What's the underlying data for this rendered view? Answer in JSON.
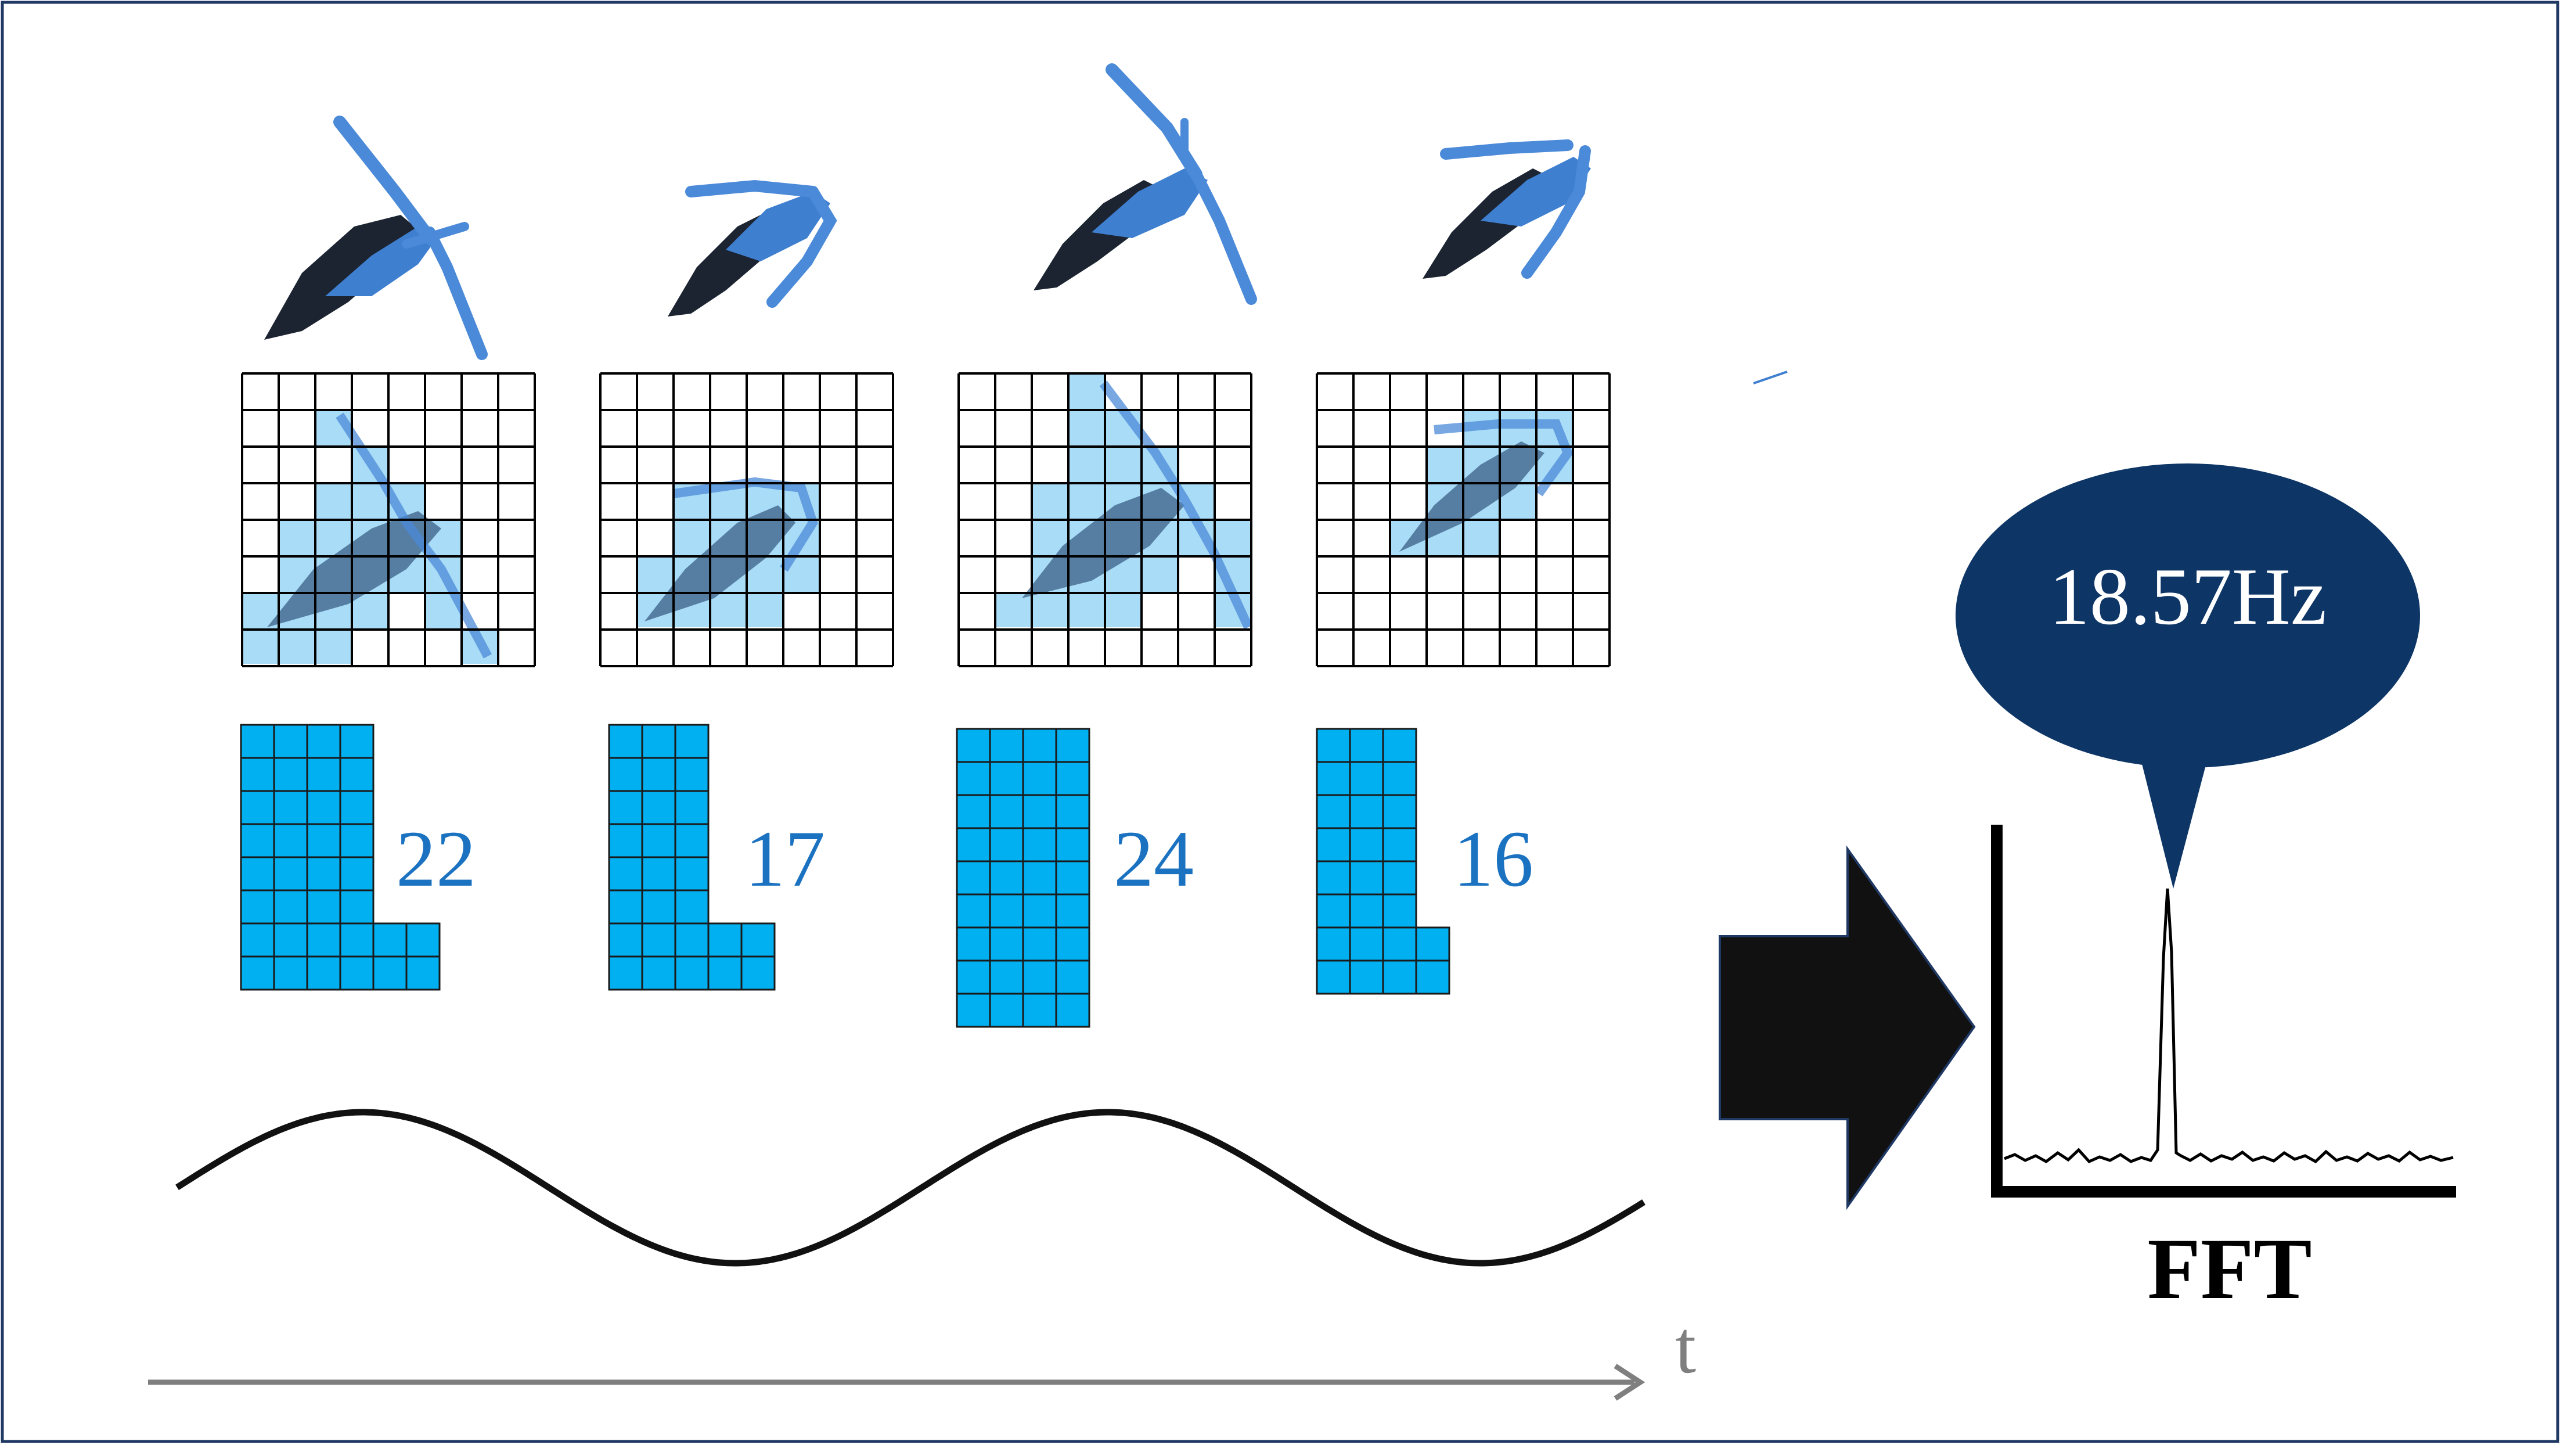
{
  "frames": [
    {
      "count": "22",
      "grid_cols": 8,
      "grid_rows": 8
    },
    {
      "count": "17",
      "grid_cols": 8,
      "grid_rows": 8
    },
    {
      "count": "24",
      "grid_cols": 8,
      "grid_rows": 8
    },
    {
      "count": "16",
      "grid_cols": 8,
      "grid_rows": 8
    }
  ],
  "time_axis_label": "t",
  "spectrum": {
    "peak_label": "18.57Hz",
    "caption": "FFT"
  },
  "colors": {
    "border": "#1f3864",
    "wing_dark": "#1c2432",
    "wing_blue": "#3f7fd0",
    "cell_highlight": "#a9dcf6",
    "count_block": "#00b0f0",
    "count_text": "#1b72c0",
    "bubble": "#0d3565",
    "arrow": "#111111",
    "axis_gray": "#7f7f7f"
  }
}
